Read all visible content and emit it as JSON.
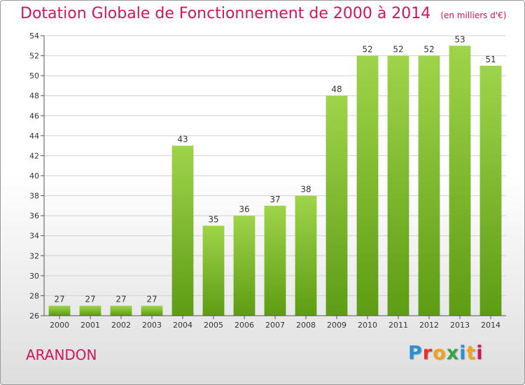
{
  "header": {
    "title": "Dotation Globale de Fonctionnement de 2000 à 2014",
    "unit": "(en milliers d'€)"
  },
  "footer": {
    "commune": "ARANDON",
    "logo": {
      "text": "Proxiti"
    }
  },
  "colors": {
    "title": "#d4145a",
    "bar_light": "#9fd44a",
    "bar_dark": "#5d9c14",
    "logo_letters": [
      "#2b8fd6",
      "#e2342e",
      "#f4a21d",
      "#3aa34a",
      "#2b8fd6",
      "#f4a21d",
      "#d4145a"
    ]
  },
  "chart_data": {
    "type": "bar",
    "categories": [
      "2000",
      "2001",
      "2002",
      "2003",
      "2004",
      "2005",
      "2006",
      "2007",
      "2008",
      "2009",
      "2010",
      "2011",
      "2012",
      "2013",
      "2014"
    ],
    "values": [
      27,
      27,
      27,
      27,
      43,
      35,
      36,
      37,
      38,
      48,
      52,
      52,
      52,
      53,
      51
    ],
    "data_labels": [
      "27",
      "27",
      "27",
      "27",
      "43",
      "35",
      "36",
      "37",
      "38",
      "48",
      "52",
      "52",
      "52",
      "53",
      "51"
    ],
    "ylim": [
      26,
      54
    ],
    "yticks": [
      "26",
      "28",
      "30",
      "32",
      "34",
      "36",
      "38",
      "40",
      "42",
      "44",
      "46",
      "48",
      "50",
      "52",
      "54"
    ],
    "grid": true
  }
}
